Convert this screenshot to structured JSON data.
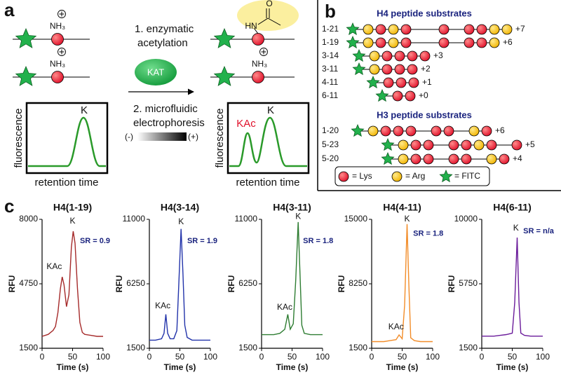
{
  "panel_a": {
    "label": "a",
    "amine": [
      "NH₃",
      "NH₃",
      "NH₃"
    ],
    "acetyl_n": "HN",
    "acetyl_o": "O",
    "step1": [
      "1. enzymatic",
      "acetylation"
    ],
    "enzyme": "KAT",
    "step2": [
      "2. microfluidic",
      "electrophoresis"
    ],
    "minus": "(-)",
    "plus": "(+)",
    "left_trace": {
      "ylabel": "fluorescence",
      "xlabel": "retention time",
      "peak": "K"
    },
    "right_trace": {
      "ylabel": "fluorescence",
      "xlabel": "retention time",
      "peaks": [
        "KAc",
        "K"
      ]
    }
  },
  "panel_b": {
    "label": "b",
    "groups": [
      {
        "title": "H4 peptide substrates",
        "rows": [
          {
            "name": "1-21",
            "charge": "+7"
          },
          {
            "name": "1-19",
            "charge": "+6"
          },
          {
            "name": "3-14",
            "charge": "+3"
          },
          {
            "name": "3-11",
            "charge": "+2"
          },
          {
            "name": "4-11",
            "charge": "+1"
          },
          {
            "name": "6-11",
            "charge": "+0"
          }
        ]
      },
      {
        "title": "H3 peptide substrates",
        "rows": [
          {
            "name": "1-20",
            "charge": "+6"
          },
          {
            "name": "5-23",
            "charge": "+5"
          },
          {
            "name": "5-20",
            "charge": "+4"
          }
        ]
      }
    ],
    "legend": [
      "= Lys",
      "= Arg",
      "= FITC"
    ]
  },
  "panel_c": {
    "label": "c",
    "plots": [
      {
        "type": "line",
        "title": "H4(1-19)",
        "ylabel": "RFU",
        "xlabel": "Time (s)",
        "color": "#a52a2a",
        "sr": "SR = 0.9",
        "peaks": [
          "KAc",
          "K"
        ],
        "xlim": [
          0,
          100
        ],
        "xticks": [
          0,
          50,
          100
        ],
        "ylim": [
          1500,
          8000
        ],
        "yticks": [
          1500,
          4750,
          8000
        ],
        "x": [
          0,
          10,
          18,
          22,
          26,
          30,
          33,
          36,
          40,
          44,
          48,
          51,
          54,
          58,
          62,
          66,
          70,
          80,
          90,
          100
        ],
        "y": [
          2100,
          2200,
          2400,
          2600,
          3300,
          4500,
          5100,
          4700,
          3600,
          4200,
          6600,
          7400,
          6800,
          4500,
          2800,
          2300,
          2200,
          2150,
          2100,
          2100
        ]
      },
      {
        "type": "line",
        "title": "H4(3-14)",
        "ylabel": "RFU",
        "xlabel": "Time (s)",
        "color": "#2233aa",
        "sr": "SR = 1.9",
        "peaks": [
          "KAc",
          "K"
        ],
        "xlim": [
          0,
          100
        ],
        "xticks": [
          0,
          50,
          100
        ],
        "ylim": [
          1500,
          11000
        ],
        "yticks": [
          1500,
          6250,
          11000
        ],
        "x": [
          0,
          10,
          20,
          24,
          27,
          30,
          34,
          40,
          45,
          48,
          52,
          55,
          58,
          62,
          70,
          80,
          90,
          100
        ],
        "y": [
          2100,
          2100,
          2200,
          2600,
          4000,
          2600,
          2200,
          2200,
          2800,
          6000,
          10300,
          7000,
          3200,
          2300,
          2100,
          2100,
          2100,
          2100
        ]
      },
      {
        "type": "line",
        "title": "H4(3-11)",
        "ylabel": "RFU",
        "xlabel": "Time (s)",
        "color": "#2e7d32",
        "sr": "SR = 1.8",
        "peaks": [
          "KAc",
          "K"
        ],
        "xlim": [
          0,
          100
        ],
        "xticks": [
          0,
          50,
          100
        ],
        "ylim": [
          1500,
          11000
        ],
        "yticks": [
          1500,
          6250,
          11000
        ],
        "x": [
          0,
          10,
          20,
          30,
          38,
          43,
          47,
          52,
          56,
          60,
          63,
          66,
          70,
          80,
          90,
          100
        ],
        "y": [
          2500,
          2500,
          2500,
          2600,
          2900,
          4000,
          2900,
          3300,
          6500,
          10800,
          7000,
          3200,
          2600,
          2500,
          2500,
          2500
        ]
      },
      {
        "type": "line",
        "title": "H4(4-11)",
        "ylabel": "RFU",
        "xlabel": "Time (s)",
        "color": "#f28c28",
        "sr": "SR = 1.8",
        "peaks": [
          "KAc",
          "K"
        ],
        "xlim": [
          0,
          100
        ],
        "xticks": [
          0,
          50,
          100
        ],
        "ylim": [
          1500,
          15000
        ],
        "yticks": [
          1500,
          8250,
          15000
        ],
        "x": [
          0,
          10,
          20,
          30,
          40,
          45,
          50,
          54,
          58,
          61,
          64,
          70,
          80,
          90,
          100
        ],
        "y": [
          2200,
          2200,
          2200,
          2300,
          2400,
          2900,
          2500,
          6000,
          14500,
          8000,
          2600,
          2300,
          2200,
          2200,
          2200
        ]
      },
      {
        "type": "line",
        "title": "H4(6-11)",
        "ylabel": "RFU",
        "xlabel": "Time (s)",
        "color": "#6a1b9a",
        "sr": "SR = n/a",
        "peaks": [
          "K"
        ],
        "xlim": [
          0,
          100
        ],
        "xticks": [
          0,
          50,
          100
        ],
        "ylim": [
          1500,
          10000
        ],
        "yticks": [
          1500,
          5750,
          10000
        ],
        "x": [
          0,
          10,
          20,
          30,
          40,
          50,
          54,
          58,
          61,
          64,
          70,
          80,
          90,
          100
        ],
        "y": [
          2300,
          2300,
          2300,
          2350,
          2400,
          2500,
          4500,
          8800,
          4500,
          2500,
          2350,
          2300,
          2300,
          2300
        ]
      }
    ]
  }
}
